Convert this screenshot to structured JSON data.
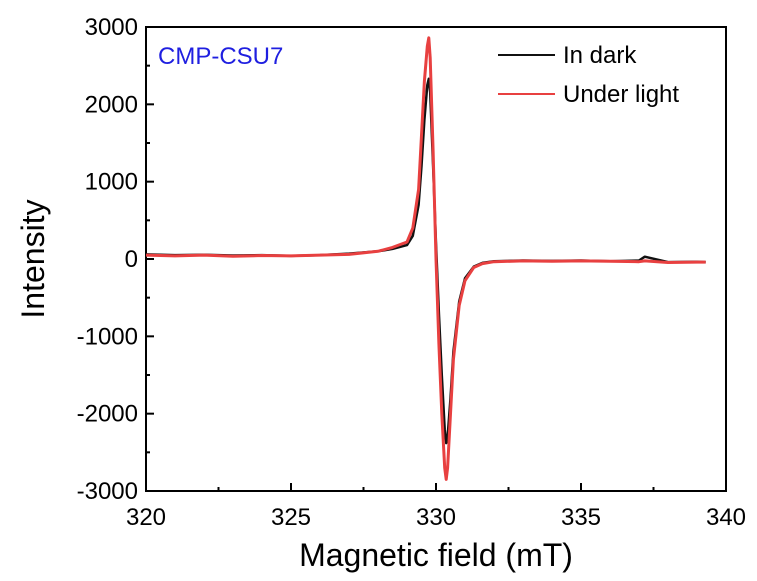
{
  "chart_data": {
    "type": "line",
    "annotation": "CMP-CSU7",
    "xlabel": "Magnetic field (mT)",
    "ylabel": "Intensity",
    "xlim": [
      320,
      340
    ],
    "ylim": [
      -3000,
      3000
    ],
    "xticks": [
      320,
      325,
      330,
      335,
      340
    ],
    "yticks": [
      3000,
      2000,
      1000,
      0,
      -1000,
      -2000,
      -3000
    ],
    "grid": false,
    "legend_position": "top-right",
    "series": [
      {
        "name": "In dark",
        "color": "#111111",
        "x": [
          320,
          321,
          322,
          323,
          324,
          325,
          326,
          327,
          328,
          328.5,
          329,
          329.2,
          329.4,
          329.5,
          329.6,
          329.7,
          329.75,
          329.8,
          329.9,
          330.0,
          330.1,
          330.2,
          330.3,
          330.35,
          330.4,
          330.5,
          330.6,
          330.8,
          331.0,
          331.3,
          331.6,
          332,
          333,
          334,
          335,
          336,
          337,
          337.2,
          338,
          339,
          339.3
        ],
        "y": [
          60,
          50,
          55,
          45,
          50,
          40,
          50,
          70,
          100,
          130,
          180,
          300,
          700,
          1200,
          1800,
          2250,
          2330,
          2150,
          1200,
          200,
          -700,
          -1500,
          -2200,
          -2380,
          -2300,
          -1800,
          -1200,
          -550,
          -250,
          -100,
          -50,
          -30,
          -20,
          -25,
          -20,
          -30,
          -20,
          30,
          -40,
          -35,
          -40
        ]
      },
      {
        "name": "Under light",
        "color": "#e84040",
        "x": [
          320,
          321,
          322,
          323,
          324,
          325,
          326,
          327,
          328,
          328.5,
          329,
          329.2,
          329.4,
          329.5,
          329.6,
          329.7,
          329.75,
          329.8,
          329.9,
          330.0,
          330.1,
          330.2,
          330.3,
          330.35,
          330.4,
          330.5,
          330.6,
          330.8,
          331.0,
          331.3,
          331.6,
          332,
          333,
          334,
          335,
          336,
          337,
          337.2,
          338,
          339,
          339.3
        ],
        "y": [
          50,
          40,
          50,
          35,
          45,
          40,
          50,
          60,
          100,
          150,
          220,
          400,
          900,
          1600,
          2300,
          2750,
          2860,
          2600,
          1400,
          0,
          -1100,
          -2000,
          -2700,
          -2850,
          -2700,
          -2000,
          -1300,
          -600,
          -280,
          -110,
          -60,
          -35,
          -25,
          -30,
          -25,
          -30,
          -35,
          -25,
          -45,
          -40,
          -40
        ]
      }
    ]
  }
}
